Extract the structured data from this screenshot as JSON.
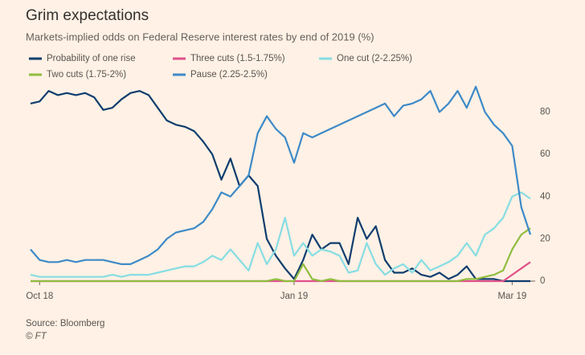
{
  "chart_data": {
    "type": "line",
    "title": "Grim expectations",
    "subtitle": "Markets-implied odds on Federal Reserve interest rates by end of 2019 (%)",
    "source": "Source: Bloomberg",
    "credit": "© FT",
    "categories": [
      null,
      "Oct 18",
      null,
      null,
      null,
      null,
      null,
      null,
      null,
      null,
      null,
      null,
      null,
      null,
      null,
      null,
      null,
      null,
      null,
      null,
      null,
      null,
      null,
      null,
      null,
      null,
      null,
      null,
      null,
      "Jan 19",
      null,
      null,
      null,
      null,
      null,
      null,
      null,
      null,
      null,
      null,
      null,
      null,
      null,
      null,
      null,
      null,
      null,
      null,
      null,
      null,
      null,
      null,
      null,
      "Mar 19",
      null,
      null
    ],
    "series": [
      {
        "name": "Probability of one rise",
        "color": "#0f3d6e",
        "values": [
          84,
          85,
          90,
          88,
          89,
          88,
          89,
          87,
          81,
          82,
          86,
          89,
          90,
          88,
          82,
          76,
          74,
          73,
          71,
          66,
          60,
          48,
          58,
          45,
          50,
          45,
          20,
          12,
          6,
          1,
          10,
          22,
          15,
          18,
          18,
          8,
          30,
          20,
          26,
          10,
          4,
          4,
          6,
          3,
          2,
          4,
          1,
          3,
          7,
          1,
          1,
          1,
          0,
          0,
          0,
          0
        ]
      },
      {
        "name": "Three cuts (1.5-1.75%)",
        "color": "#e0508a",
        "values": [
          0,
          0,
          0,
          0,
          0,
          0,
          0,
          0,
          0,
          0,
          0,
          0,
          0,
          0,
          0,
          0,
          0,
          0,
          0,
          0,
          0,
          0,
          0,
          0,
          0,
          0,
          0,
          0,
          0,
          0,
          0,
          0,
          0,
          0,
          0,
          0,
          0,
          0,
          0,
          0,
          0,
          0,
          0,
          0,
          0,
          0,
          0,
          0,
          0,
          0,
          0,
          0,
          0,
          3,
          6,
          9
        ]
      },
      {
        "name": "One cut (2-2.25%)",
        "color": "#86dde3",
        "values": [
          3,
          2,
          2,
          2,
          2,
          2,
          2,
          2,
          2,
          3,
          2,
          3,
          3,
          3,
          4,
          5,
          6,
          7,
          7,
          9,
          12,
          10,
          15,
          10,
          5,
          18,
          8,
          15,
          30,
          12,
          18,
          12,
          15,
          14,
          12,
          4,
          5,
          18,
          8,
          3,
          6,
          8,
          4,
          10,
          5,
          7,
          9,
          12,
          18,
          12,
          22,
          25,
          30,
          40,
          42,
          39
        ]
      },
      {
        "name": "Two cuts (1.75-2%)",
        "color": "#8fbd3f",
        "values": [
          0,
          0,
          0,
          0,
          0,
          0,
          0,
          0,
          0,
          0,
          0,
          0,
          0,
          0,
          0,
          0,
          0,
          0,
          0,
          0,
          0,
          0,
          0,
          0,
          0,
          0,
          0,
          1,
          0,
          0,
          8,
          1,
          0,
          1,
          0,
          0,
          0,
          0,
          0,
          0,
          0,
          0,
          0,
          0,
          0,
          0,
          0,
          0,
          1,
          1,
          2,
          3,
          5,
          15,
          22,
          25
        ]
      },
      {
        "name": "Pause (2.25-2.5%)",
        "color": "#3d8ac8",
        "values": [
          15,
          10,
          9,
          9,
          10,
          9,
          10,
          10,
          10,
          9,
          8,
          8,
          10,
          12,
          15,
          20,
          23,
          24,
          25,
          28,
          34,
          42,
          40,
          45,
          50,
          70,
          78,
          72,
          68,
          56,
          70,
          68,
          70,
          72,
          74,
          76,
          78,
          80,
          82,
          84,
          78,
          83,
          84,
          86,
          90,
          80,
          84,
          90,
          82,
          92,
          80,
          74,
          70,
          64,
          35,
          22
        ]
      }
    ],
    "ylim": [
      0,
      95
    ],
    "yticks": [
      0,
      20,
      40,
      60,
      80
    ]
  }
}
